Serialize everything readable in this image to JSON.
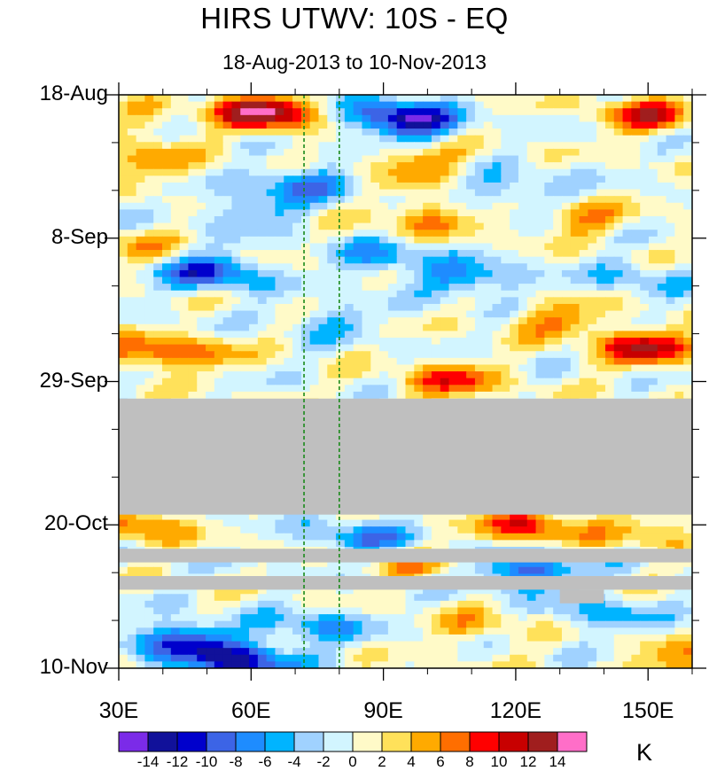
{
  "title": "HIRS UTWV: 10S - EQ",
  "subtitle": "18-Aug-2013 to 10-Nov-2013",
  "chart_data": {
    "type": "heatmap",
    "title": "HIRS UTWV: 10S - EQ",
    "subtitle": "18-Aug-2013 to 10-Nov-2013",
    "x_axis": {
      "range_deg_east": [
        30,
        160
      ],
      "tick_labels": [
        "30E",
        "60E",
        "90E",
        "120E",
        "150E"
      ],
      "tick_values": [
        30,
        60,
        90,
        120,
        150
      ]
    },
    "y_axis": {
      "range": [
        "18-Aug-2013",
        "10-Nov-2013"
      ],
      "tick_labels": [
        "18-Aug",
        "8-Sep",
        "29-Sep",
        "20-Oct",
        "10-Nov"
      ],
      "tick_day_offsets": [
        0,
        21,
        42,
        63,
        84
      ],
      "direction": "time increases downward"
    },
    "reference_lines_deg_east": [
      72,
      80
    ],
    "missing_data_periods": [
      {
        "from_day": 44.5,
        "to_day": 61.5,
        "lon_range": [
          30,
          160
        ]
      },
      {
        "from_day": 66.5,
        "to_day": 68.5,
        "lon_range": [
          30,
          160
        ]
      },
      {
        "from_day": 70.5,
        "to_day": 72.5,
        "lon_range": [
          30,
          160
        ]
      },
      {
        "from_day": 72.5,
        "to_day": 74.5,
        "lon_range": [
          130,
          140
        ]
      }
    ],
    "colorbar": {
      "units": "K",
      "labels": [
        "-14",
        "-12",
        "-10",
        "-8",
        "-6",
        "-4",
        "-2",
        "0",
        "2",
        "4",
        "6",
        "8",
        "10",
        "12",
        "14"
      ],
      "levels": [
        -14,
        -12,
        -10,
        -8,
        -6,
        -4,
        -2,
        0,
        2,
        4,
        6,
        8,
        10,
        12,
        14
      ],
      "colors": [
        "#7b2be8",
        "#11119a",
        "#0000cc",
        "#3c64e6",
        "#1e8cff",
        "#00b4ff",
        "#a0d2ff",
        "#d2f5ff",
        "#fffac8",
        "#ffe15a",
        "#ffaa00",
        "#ff6e00",
        "#ff0000",
        "#c80000",
        "#a01e1e",
        "#ff6ec8"
      ]
    },
    "features": [
      {
        "lon": 65,
        "day": 3,
        "value": 9
      },
      {
        "lon": 150,
        "day": 3,
        "value": 9
      },
      {
        "lon": 150,
        "day": 37,
        "value": 11
      },
      {
        "lon": 105,
        "day": 42,
        "value": 8
      },
      {
        "lon": 60,
        "day": 2,
        "value": 6
      },
      {
        "lon": 35,
        "day": 4,
        "value": 3
      },
      {
        "lon": 37,
        "day": 10,
        "value": 5
      },
      {
        "lon": 33,
        "day": 22,
        "value": 4
      },
      {
        "lon": 35,
        "day": 38,
        "value": 6
      },
      {
        "lon": 98,
        "day": 10,
        "value": 6
      },
      {
        "lon": 100,
        "day": 18,
        "value": 6
      },
      {
        "lon": 135,
        "day": 18,
        "value": 5
      },
      {
        "lon": 130,
        "day": 33,
        "value": 6
      },
      {
        "lon": 48,
        "day": 38,
        "value": 5
      },
      {
        "lon": 90,
        "day": 3,
        "value": -6
      },
      {
        "lon": 97,
        "day": 4,
        "value": -10
      },
      {
        "lon": 72,
        "day": 13,
        "value": -7
      },
      {
        "lon": 60,
        "day": 17,
        "value": -5
      },
      {
        "lon": 51,
        "day": 26,
        "value": -10
      },
      {
        "lon": 90,
        "day": 24,
        "value": -6
      },
      {
        "lon": 110,
        "day": 27,
        "value": -7
      },
      {
        "lon": 120,
        "day": 14,
        "value": -5
      },
      {
        "lon": 147,
        "day": 27,
        "value": -4
      },
      {
        "lon": 78,
        "day": 33,
        "value": -4
      },
      {
        "lon": 34,
        "day": 63,
        "value": 7
      },
      {
        "lon": 123,
        "day": 63,
        "value": 9
      },
      {
        "lon": 150,
        "day": 64,
        "value": 5
      },
      {
        "lon": 95,
        "day": 69,
        "value": 4
      },
      {
        "lon": 112,
        "day": 78,
        "value": 4
      },
      {
        "lon": 158,
        "day": 83,
        "value": 6
      },
      {
        "lon": 85,
        "day": 65,
        "value": -7
      },
      {
        "lon": 123,
        "day": 70,
        "value": -10
      },
      {
        "lon": 44,
        "day": 80,
        "value": -11
      },
      {
        "lon": 58,
        "day": 83,
        "value": -12
      },
      {
        "lon": 75,
        "day": 78,
        "value": -6
      },
      {
        "lon": 140,
        "day": 76,
        "value": -5
      }
    ]
  }
}
